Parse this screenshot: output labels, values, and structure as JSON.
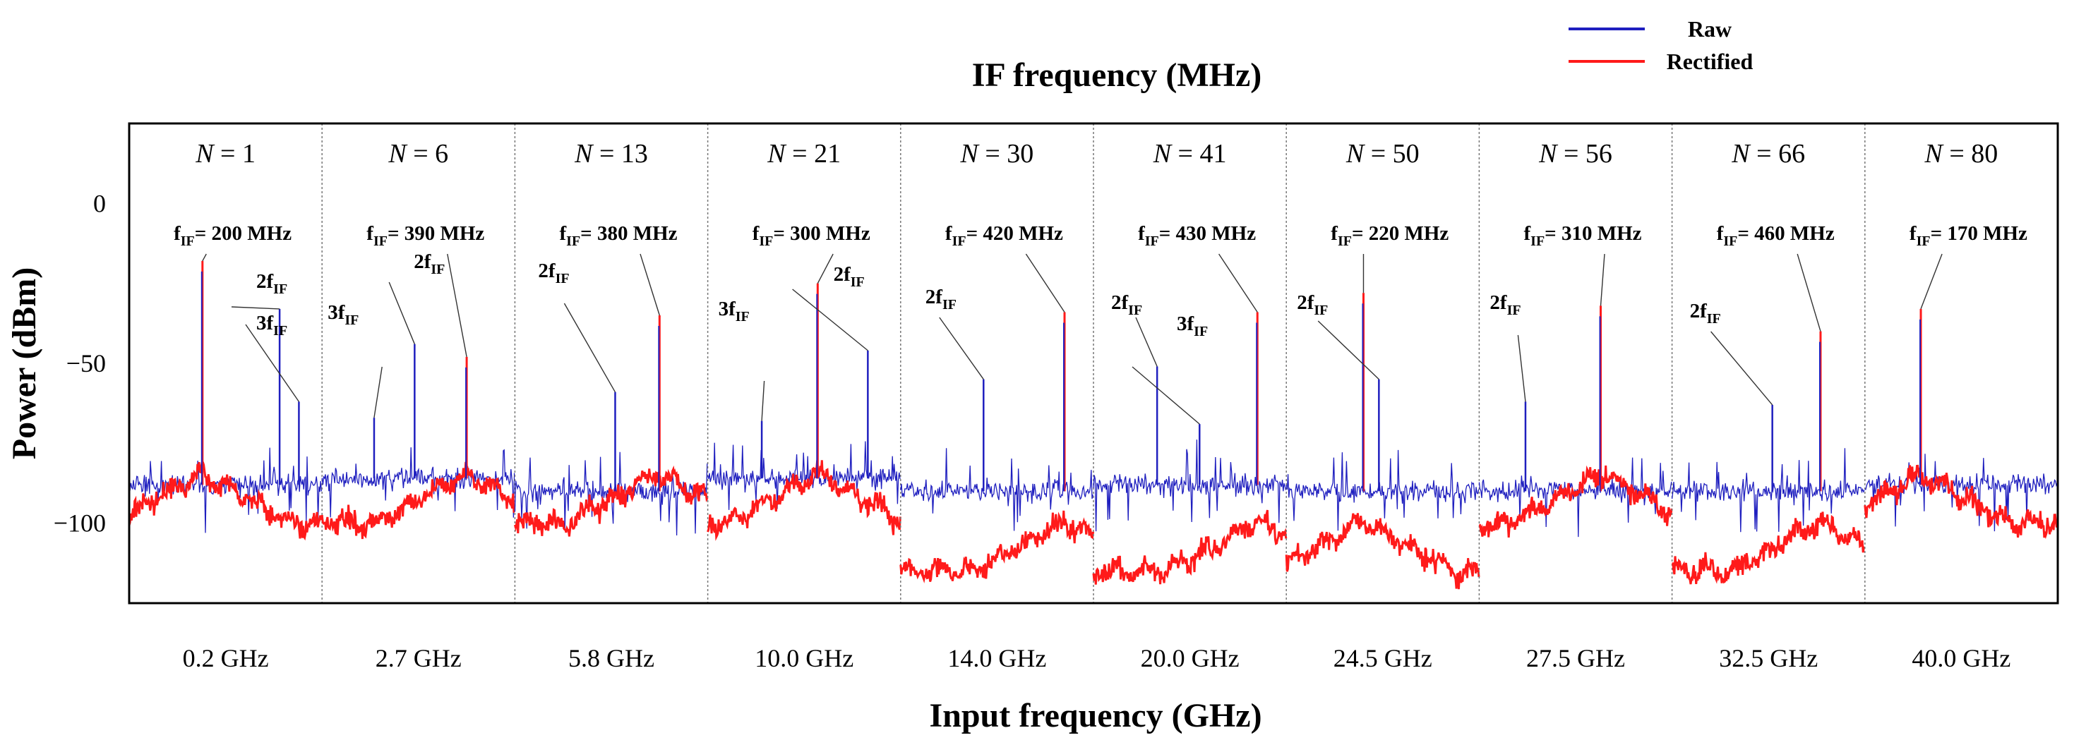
{
  "chart_data": {
    "type": "line",
    "title": "IF frequency (MHz)",
    "xlabel": "Input frequency (GHz)",
    "ylabel": "Power (dBm)",
    "ylim": [
      -125,
      25
    ],
    "yticks": [
      0,
      -50,
      -100
    ],
    "ytick_labels": [
      "0",
      "−50",
      "−100"
    ],
    "legend": {
      "position": "top-right",
      "entries": [
        {
          "name": "Raw",
          "color": "#1f1fbf"
        },
        {
          "name": "Rectified",
          "color": "#ff1a1a"
        }
      ]
    },
    "n_prefix": "N",
    "n_eq": " = ",
    "f_main": "f",
    "f_sub": "IF",
    "f_eq": "= ",
    "segments": [
      {
        "category": "0.2 GHz",
        "N": "1",
        "f_if_label": "200 MHz",
        "carrier_dbm": -18,
        "noise_dbm": -88,
        "harmonics": [
          {
            "label": "2",
            "dbm": -33
          },
          {
            "label": "3",
            "dbm": -62
          }
        ]
      },
      {
        "category": "2.7 GHz",
        "N": "6",
        "f_if_label": "390 MHz",
        "carrier_dbm": -48,
        "noise_dbm": -86,
        "harmonics": [
          {
            "label": "2",
            "dbm": -44
          },
          {
            "label": "3",
            "dbm": -67
          }
        ]
      },
      {
        "category": "5.8 GHz",
        "N": "13",
        "f_if_label": "380 MHz",
        "carrier_dbm": -35,
        "noise_dbm": -90,
        "harmonics": [
          {
            "label": "2",
            "dbm": -59
          }
        ]
      },
      {
        "category": "10.0 GHz",
        "N": "21",
        "f_if_label": "300 MHz",
        "carrier_dbm": -25,
        "noise_dbm": -86,
        "harmonics": [
          {
            "label": "2",
            "dbm": -46
          },
          {
            "label": "3",
            "dbm": -68
          }
        ]
      },
      {
        "category": "14.0 GHz",
        "N": "30",
        "f_if_label": "420 MHz",
        "carrier_dbm": -34,
        "noise_dbm": -90,
        "harmonics": [
          {
            "label": "2",
            "dbm": -55
          }
        ]
      },
      {
        "category": "20.0 GHz",
        "N": "41",
        "f_if_label": "430 MHz",
        "carrier_dbm": -34,
        "noise_dbm": -88,
        "harmonics": [
          {
            "label": "2",
            "dbm": -51
          },
          {
            "label": "3",
            "dbm": -69
          }
        ]
      },
      {
        "category": "24.5 GHz",
        "N": "50",
        "f_if_label": "220 MHz",
        "carrier_dbm": -28,
        "noise_dbm": -90,
        "harmonics": [
          {
            "label": "2",
            "dbm": -55
          }
        ]
      },
      {
        "category": "27.5 GHz",
        "N": "56",
        "f_if_label": "310 MHz",
        "carrier_dbm": -32,
        "noise_dbm": -90,
        "harmonics": [
          {
            "label": "2",
            "dbm": -62
          }
        ]
      },
      {
        "category": "32.5 GHz",
        "N": "66",
        "f_if_label": "460 MHz",
        "carrier_dbm": -40,
        "noise_dbm": -90,
        "harmonics": [
          {
            "label": "2",
            "dbm": -63
          }
        ]
      },
      {
        "category": "40.0 GHz",
        "N": "80",
        "f_if_label": "170 MHz",
        "carrier_dbm": -33,
        "noise_dbm": -88,
        "harmonics": []
      }
    ]
  }
}
